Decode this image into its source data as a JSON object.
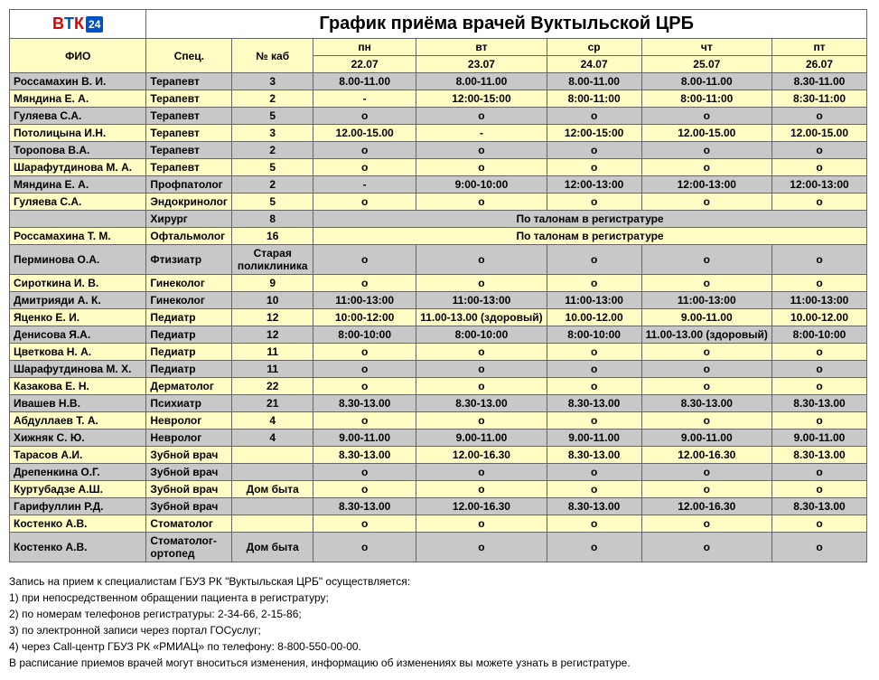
{
  "title": "График приёма врачей Вуктыльской ЦРБ",
  "logo": {
    "b": "В",
    "t": "Т",
    "k": "К",
    "n24": "24"
  },
  "headers": {
    "fio": "ФИО",
    "spec": "Спец.",
    "kab": "№ каб"
  },
  "days": [
    "пн",
    "вт",
    "ср",
    "чт",
    "пт"
  ],
  "dates": [
    "22.07",
    "23.07",
    "24.07",
    "25.07",
    "26.07"
  ],
  "by_coupon": "По талонам в регистратуре",
  "rows": [
    {
      "cls": "gray",
      "name": "Россамахин В. И.",
      "spec": "Терапевт",
      "kab": "3",
      "d": [
        "8.00-11.00",
        "8.00-11.00",
        "8.00-11.00",
        "8.00-11.00",
        "8.30-11.00"
      ]
    },
    {
      "cls": "yellow",
      "name": "Мяндина Е. А.",
      "spec": "Терапевт",
      "kab": "2",
      "d": [
        "-",
        "12:00-15:00",
        "8:00-11:00",
        "8:00-11:00",
        "8:30-11:00"
      ]
    },
    {
      "cls": "gray",
      "name": "Гуляева С.А.",
      "spec": "Терапевт",
      "kab": "5",
      "d": [
        "о",
        "о",
        "о",
        "о",
        "о"
      ]
    },
    {
      "cls": "yellow",
      "name": "Потолицына И.Н.",
      "spec": "Терапевт",
      "kab": "3",
      "d": [
        "12.00-15.00",
        "-",
        "12:00-15:00",
        "12.00-15.00",
        "12.00-15.00"
      ]
    },
    {
      "cls": "gray",
      "name": "Торопова В.А.",
      "spec": "Терапевт",
      "kab": "2",
      "d": [
        "о",
        "о",
        "о",
        "о",
        "о"
      ]
    },
    {
      "cls": "yellow",
      "name": "Шарафутдинова М. А.",
      "spec": "Терапевт",
      "kab": "5",
      "d": [
        "о",
        "о",
        "о",
        "о",
        "о"
      ]
    },
    {
      "cls": "gray",
      "name": "Мяндина Е. А.",
      "spec": "Профпатолог",
      "kab": "2",
      "d": [
        "-",
        "9:00-10:00",
        "12:00-13:00",
        "12:00-13:00",
        "12:00-13:00"
      ]
    },
    {
      "cls": "yellow",
      "name": "Гуляева С.А.",
      "spec": "Эндокринолог",
      "kab": "5",
      "d": [
        "о",
        "о",
        "о",
        "о",
        "о"
      ]
    },
    {
      "cls": "gray",
      "name": "",
      "spec": "Хирург",
      "kab": "8",
      "merged": true
    },
    {
      "cls": "yellow",
      "name": "Россамахина Т. М.",
      "spec": "Офтальмолог",
      "kab": "16",
      "merged": true
    },
    {
      "cls": "gray",
      "name": "Перминова О.А.",
      "spec": "Фтизиатр",
      "kab": "Старая поликлиника",
      "d": [
        "о",
        "о",
        "о",
        "о",
        "о"
      ]
    },
    {
      "cls": "yellow",
      "name": "Сироткина И. В.",
      "spec": "Гинеколог",
      "kab": "9",
      "d": [
        "о",
        "о",
        "о",
        "о",
        "о"
      ]
    },
    {
      "cls": "gray",
      "name": "Дмитрияди А. К.",
      "spec": "Гинеколог",
      "kab": "10",
      "d": [
        "11:00-13:00",
        "11:00-13:00",
        "11:00-13:00",
        "11:00-13:00",
        "11:00-13:00"
      ]
    },
    {
      "cls": "yellow",
      "name": "Яценко Е. И.",
      "spec": "Педиатр",
      "kab": "12",
      "d": [
        "10:00-12:00",
        "11.00-13.00 (здоровый)",
        "10.00-12.00",
        "9.00-11.00",
        "10.00-12.00"
      ]
    },
    {
      "cls": "gray",
      "name": "Денисова Я.А.",
      "spec": "Педиатр",
      "kab": "12",
      "d": [
        "8:00-10:00",
        "8:00-10:00",
        "8:00-10:00",
        "11.00-13.00 (здоровый)",
        "8:00-10:00"
      ]
    },
    {
      "cls": "yellow",
      "name": "Цветкова Н. А.",
      "spec": "Педиатр",
      "kab": "11",
      "d": [
        "о",
        "о",
        "о",
        "о",
        "о"
      ]
    },
    {
      "cls": "gray",
      "name": "Шарафутдинова М. Х.",
      "spec": "Педиатр",
      "kab": "11",
      "d": [
        "о",
        "о",
        "о",
        "о",
        "о"
      ]
    },
    {
      "cls": "yellow",
      "name": "Казакова Е. Н.",
      "spec": "Дерматолог",
      "kab": "22",
      "d": [
        "о",
        "о",
        "о",
        "о",
        "о"
      ]
    },
    {
      "cls": "gray",
      "name": "Ивашев Н.В.",
      "spec": "Психиатр",
      "kab": "21",
      "d": [
        "8.30-13.00",
        "8.30-13.00",
        "8.30-13.00",
        "8.30-13.00",
        "8.30-13.00"
      ]
    },
    {
      "cls": "yellow",
      "name": "Абдуллаев Т. А.",
      "spec": "Невролог",
      "kab": "4",
      "d": [
        "о",
        "о",
        "о",
        "о",
        "о"
      ]
    },
    {
      "cls": "gray",
      "name": "Хижняк С. Ю.",
      "spec": "Невролог",
      "kab": "4",
      "d": [
        "9.00-11.00",
        "9.00-11.00",
        "9.00-11.00",
        "9.00-11.00",
        "9.00-11.00"
      ]
    },
    {
      "cls": "yellow",
      "name": "Тарасов А.И.",
      "spec": "Зубной врач",
      "kab": "",
      "d": [
        "8.30-13.00",
        "12.00-16.30",
        "8.30-13.00",
        "12.00-16.30",
        "8.30-13.00"
      ]
    },
    {
      "cls": "gray",
      "name": "Дрепенкина О.Г.",
      "spec": "Зубной врач",
      "kab": "",
      "d": [
        "о",
        "о",
        "о",
        "о",
        "о"
      ]
    },
    {
      "cls": "yellow",
      "name": "Куртубадзе А.Ш.",
      "spec": "Зубной врач",
      "kab": "Дом быта",
      "d": [
        "о",
        "о",
        "о",
        "о",
        "о"
      ]
    },
    {
      "cls": "gray",
      "name": "Гарифуллин Р.Д.",
      "spec": "Зубной врач",
      "kab": "",
      "d": [
        "8.30-13.00",
        "12.00-16.30",
        "8.30-13.00",
        "12.00-16.30",
        "8.30-13.00"
      ]
    },
    {
      "cls": "yellow",
      "name": "Костенко А.В.",
      "spec": "Стоматолог",
      "kab": "",
      "d": [
        "о",
        "о",
        "о",
        "о",
        "о"
      ]
    },
    {
      "cls": "gray",
      "name": "Костенко А.В.",
      "spec": "Стоматолог-ортопед",
      "kab": "Дом быта",
      "d": [
        "о",
        "о",
        "о",
        "о",
        "о"
      ]
    }
  ],
  "footer": [
    "Запись на прием к специалистам ГБУЗ РК \"Вуктыльская ЦРБ\" осуществляется:",
    "1) при непосредственном обращении пациента в регистратуру;",
    "2) по номерам телефонов регистратуры: 2-34-66, 2-15-86;",
    "3) по электронной записи через портал ГОСуслуг;",
    "4) через Call-центр ГБУЗ РК «РМИАЦ» по телефону: 8-800-550-00-00.",
    "В расписание приемов врачей могут вноситься изменения, информацию об изменениях вы можете узнать в регистратуре."
  ],
  "col_widths": {
    "name": 155,
    "spec": 95,
    "kab": 90,
    "day": 120
  }
}
